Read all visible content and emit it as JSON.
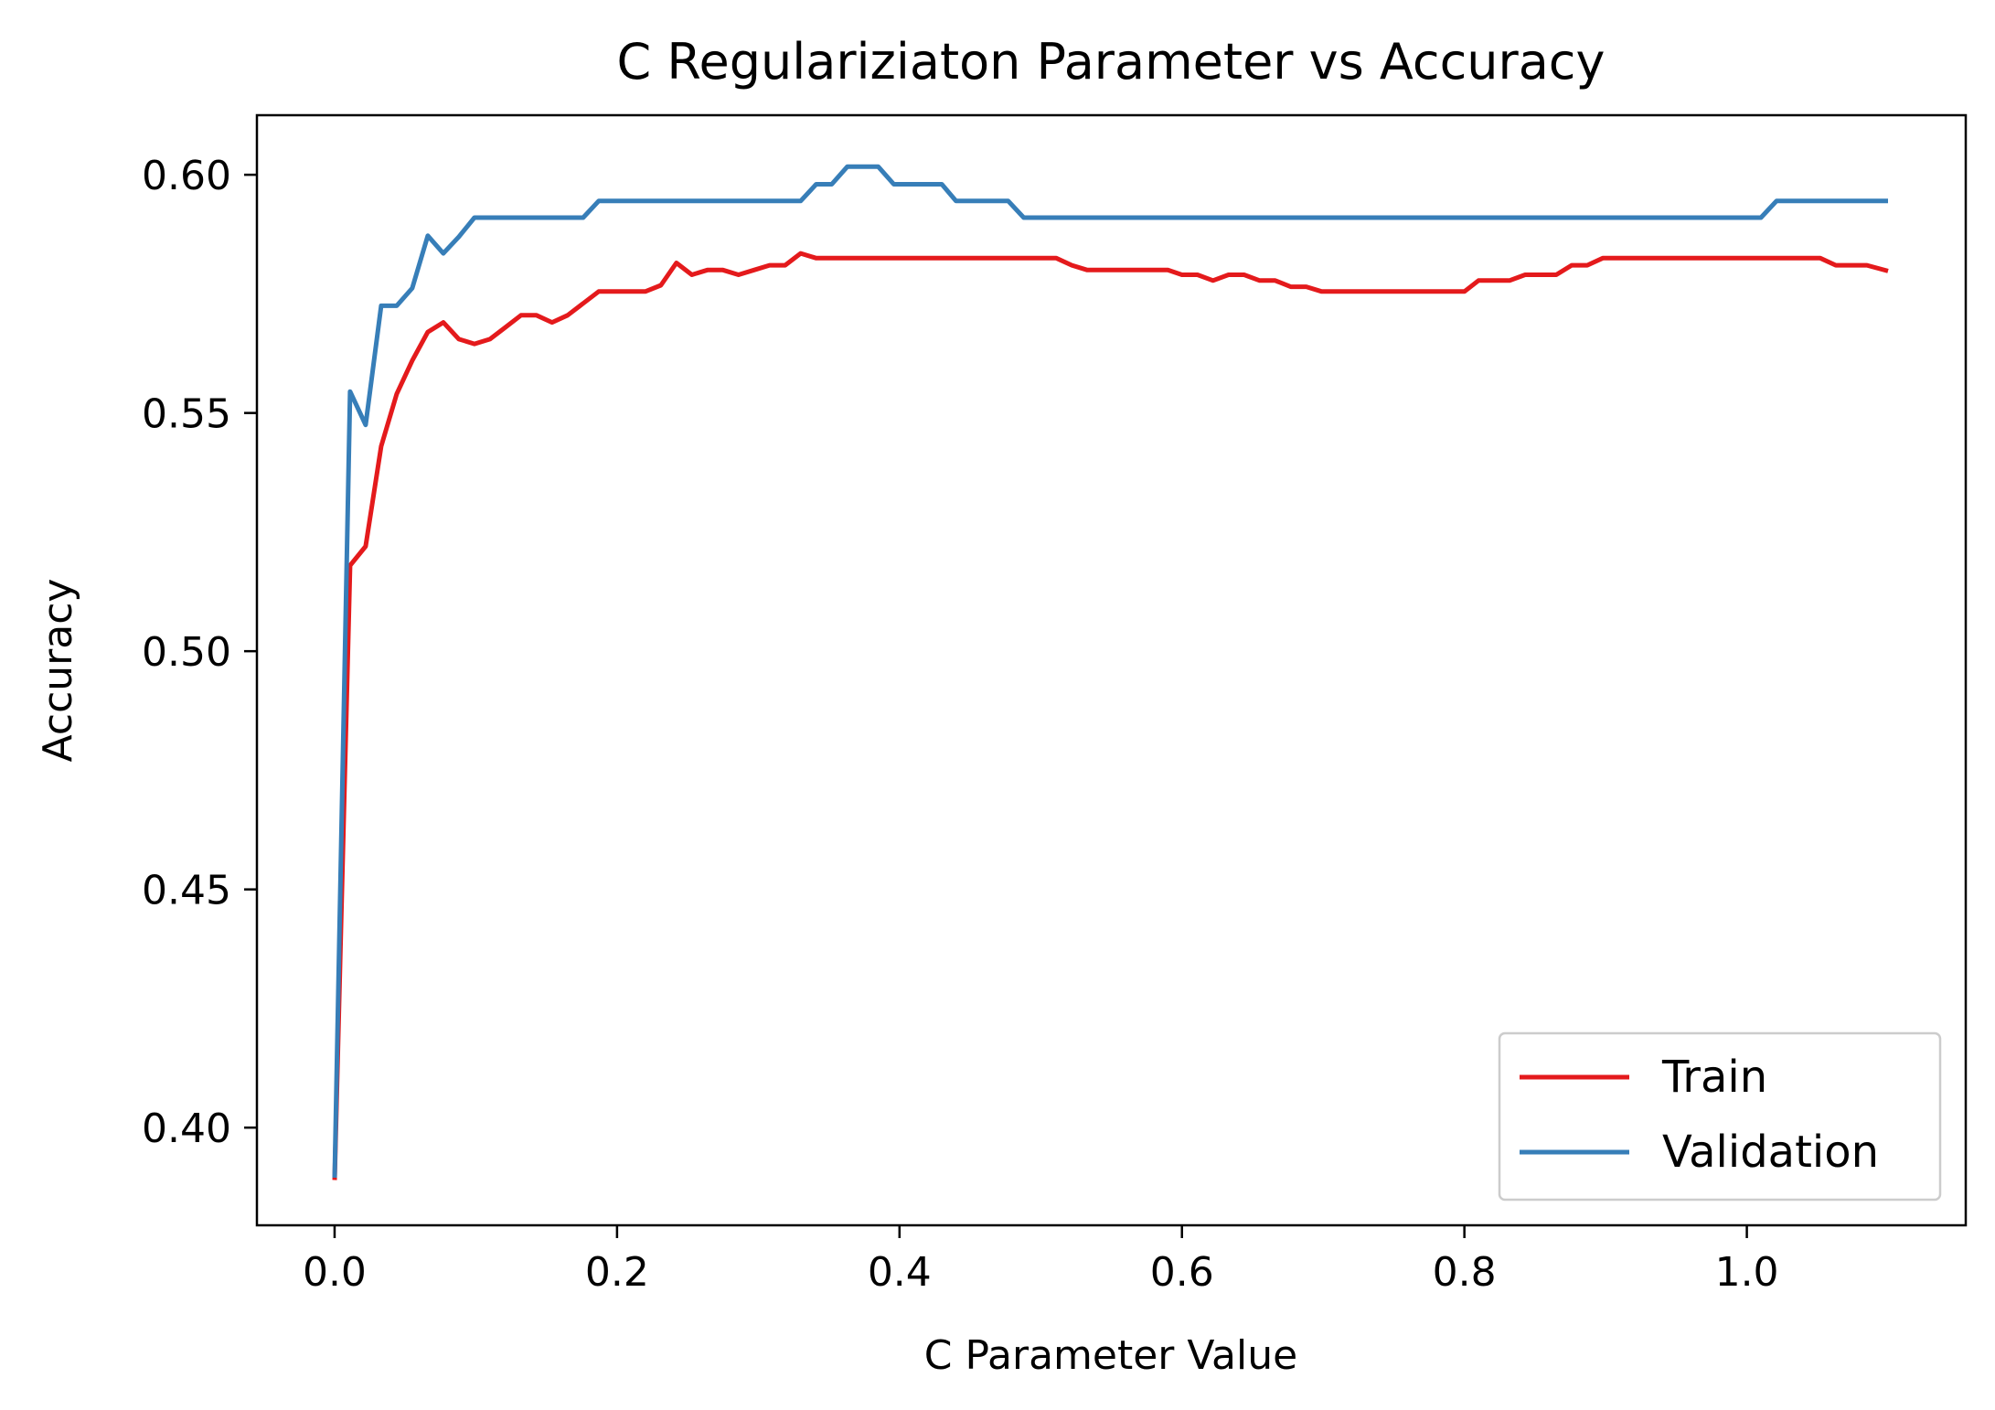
{
  "chart_data": {
    "type": "line",
    "title": "C Regulariziaton Parameter vs Accuracy",
    "xlabel": "C Parameter Value",
    "ylabel": "Accuracy",
    "xlim": [
      -0.055,
      1.155
    ],
    "ylim": [
      0.3795,
      0.6125
    ],
    "xticks": [
      0.0,
      0.2,
      0.4,
      0.6,
      0.8,
      1.0
    ],
    "xtick_labels": [
      "0.0",
      "0.2",
      "0.4",
      "0.6",
      "0.8",
      "1.0"
    ],
    "yticks": [
      0.4,
      0.45,
      0.5,
      0.55,
      0.6
    ],
    "ytick_labels": [
      "0.40",
      "0.45",
      "0.50",
      "0.55",
      "0.60"
    ],
    "grid": false,
    "legend_position": "lower-right",
    "series": [
      {
        "name": "Train",
        "color": "#e41a1c",
        "points": [
          [
            0.0,
            0.389
          ],
          [
            0.011,
            0.518
          ],
          [
            0.022,
            0.522
          ],
          [
            0.033,
            0.543
          ],
          [
            0.044,
            0.554
          ],
          [
            0.055,
            0.561
          ],
          [
            0.066,
            0.567
          ],
          [
            0.077,
            0.569
          ],
          [
            0.088,
            0.5655
          ],
          [
            0.099,
            0.5645
          ],
          [
            0.11,
            0.5655
          ],
          [
            0.121,
            0.568
          ],
          [
            0.132,
            0.5705
          ],
          [
            0.143,
            0.5705
          ],
          [
            0.154,
            0.569
          ],
          [
            0.165,
            0.5705
          ],
          [
            0.176,
            0.573
          ],
          [
            0.187,
            0.5755
          ],
          [
            0.2,
            0.5755
          ],
          [
            0.22,
            0.5755
          ],
          [
            0.231,
            0.5768
          ],
          [
            0.242,
            0.5815
          ],
          [
            0.253,
            0.579
          ],
          [
            0.264,
            0.58
          ],
          [
            0.275,
            0.58
          ],
          [
            0.286,
            0.579
          ],
          [
            0.297,
            0.58
          ],
          [
            0.308,
            0.581
          ],
          [
            0.319,
            0.581
          ],
          [
            0.33,
            0.5835
          ],
          [
            0.341,
            0.5825
          ],
          [
            0.5,
            0.5825
          ],
          [
            0.511,
            0.5825
          ],
          [
            0.522,
            0.581
          ],
          [
            0.533,
            0.58
          ],
          [
            0.59,
            0.58
          ],
          [
            0.6,
            0.579
          ],
          [
            0.611,
            0.579
          ],
          [
            0.622,
            0.5778
          ],
          [
            0.633,
            0.579
          ],
          [
            0.644,
            0.579
          ],
          [
            0.655,
            0.5778
          ],
          [
            0.666,
            0.5778
          ],
          [
            0.677,
            0.5765
          ],
          [
            0.688,
            0.5765
          ],
          [
            0.699,
            0.5755
          ],
          [
            0.8,
            0.5755
          ],
          [
            0.81,
            0.5778
          ],
          [
            0.832,
            0.5778
          ],
          [
            0.843,
            0.579
          ],
          [
            0.865,
            0.579
          ],
          [
            0.876,
            0.581
          ],
          [
            0.887,
            0.581
          ],
          [
            0.898,
            0.5825
          ],
          [
            1.052,
            0.5825
          ],
          [
            1.063,
            0.581
          ],
          [
            1.085,
            0.581
          ],
          [
            1.1,
            0.5798
          ]
        ]
      },
      {
        "name": "Validation",
        "color": "#377eb8",
        "points": [
          [
            0.0,
            0.3895
          ],
          [
            0.011,
            0.5545
          ],
          [
            0.022,
            0.5475
          ],
          [
            0.033,
            0.5725
          ],
          [
            0.044,
            0.5725
          ],
          [
            0.055,
            0.5762
          ],
          [
            0.066,
            0.5872
          ],
          [
            0.077,
            0.5835
          ],
          [
            0.088,
            0.587
          ],
          [
            0.099,
            0.591
          ],
          [
            0.176,
            0.591
          ],
          [
            0.187,
            0.5945
          ],
          [
            0.33,
            0.5945
          ],
          [
            0.341,
            0.598
          ],
          [
            0.352,
            0.598
          ],
          [
            0.363,
            0.6017
          ],
          [
            0.385,
            0.6017
          ],
          [
            0.396,
            0.598
          ],
          [
            0.43,
            0.598
          ],
          [
            0.44,
            0.5945
          ],
          [
            0.477,
            0.5945
          ],
          [
            0.488,
            0.591
          ],
          [
            1.01,
            0.591
          ],
          [
            1.021,
            0.5945
          ],
          [
            1.1,
            0.5945
          ]
        ]
      }
    ]
  }
}
